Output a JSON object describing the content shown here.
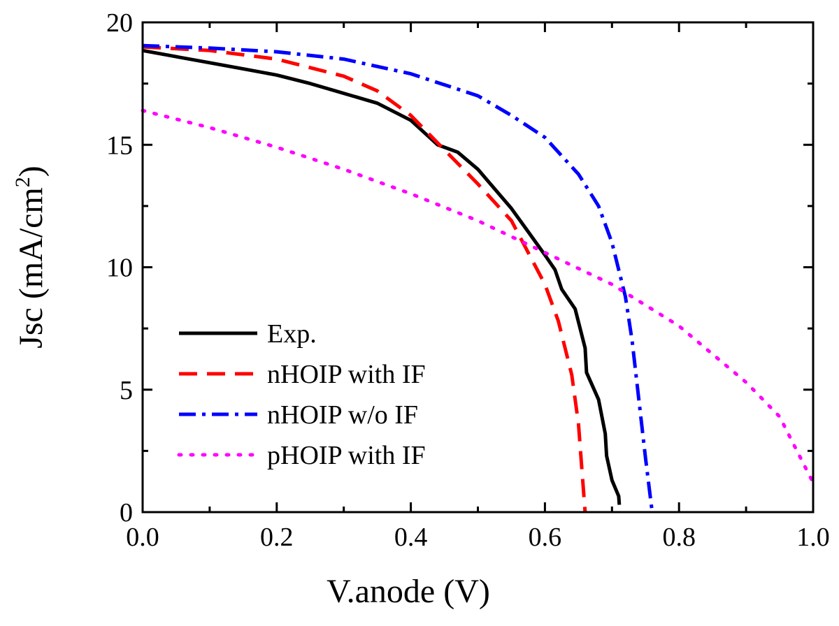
{
  "chart_data": {
    "type": "line",
    "xlabel": "V.anode (V)",
    "ylabel": {
      "prefix": "Jsc (mA/cm",
      "sup": "2",
      "suffix": ")"
    },
    "xlim": [
      0,
      1.0
    ],
    "ylim": [
      0,
      20
    ],
    "xticks": [
      "0.0",
      "0.2",
      "0.4",
      "0.6",
      "0.8",
      "1.0"
    ],
    "yticks": [
      "0",
      "5",
      "10",
      "15",
      "20"
    ],
    "xtick_values": [
      0,
      0.2,
      0.4,
      0.6,
      0.8,
      1.0
    ],
    "ytick_values": [
      0,
      5,
      10,
      15,
      20
    ],
    "grid": false,
    "legend_position": "bottom-left",
    "series": [
      {
        "name": "Exp.",
        "color": "#000000",
        "dash": "solid",
        "x": [
          0,
          0.05,
          0.1,
          0.15,
          0.2,
          0.25,
          0.3,
          0.35,
          0.4,
          0.44,
          0.47,
          0.5,
          0.55,
          0.6,
          0.615,
          0.625,
          0.645,
          0.66,
          0.662,
          0.68,
          0.69,
          0.692,
          0.7,
          0.71,
          0.711
        ],
        "y": [
          18.85,
          18.6,
          18.35,
          18.1,
          17.85,
          17.5,
          17.1,
          16.7,
          16.0,
          15.0,
          14.7,
          14.0,
          12.4,
          10.5,
          9.9,
          9.1,
          8.3,
          6.7,
          5.7,
          4.6,
          3.2,
          2.3,
          1.3,
          0.65,
          0.3
        ]
      },
      {
        "name": "nHOIP with IF",
        "color": "#ff0000",
        "dash": "dashed",
        "x": [
          0,
          0.1,
          0.2,
          0.3,
          0.35,
          0.4,
          0.45,
          0.5,
          0.55,
          0.6,
          0.62,
          0.64,
          0.65,
          0.655,
          0.66
        ],
        "y": [
          19.0,
          18.85,
          18.5,
          17.8,
          17.2,
          16.2,
          14.8,
          13.4,
          11.9,
          9.3,
          7.8,
          5.6,
          3.6,
          1.8,
          0
        ]
      },
      {
        "name": "nHOIP w/o IF",
        "color": "#0000ff",
        "dash": "dashdot",
        "x": [
          0,
          0.1,
          0.2,
          0.3,
          0.4,
          0.5,
          0.55,
          0.6,
          0.65,
          0.68,
          0.7,
          0.72,
          0.73,
          0.74,
          0.75,
          0.76
        ],
        "y": [
          19.05,
          18.95,
          18.8,
          18.5,
          17.9,
          17.0,
          16.2,
          15.3,
          13.8,
          12.5,
          11.0,
          8.8,
          7.0,
          4.6,
          2.2,
          0
        ]
      },
      {
        "name": "pHOIP with IF",
        "color": "#ff00ff",
        "dash": "dotted",
        "x": [
          0,
          0.1,
          0.2,
          0.3,
          0.4,
          0.5,
          0.6,
          0.7,
          0.8,
          0.9,
          0.95,
          1.0
        ],
        "y": [
          16.4,
          15.7,
          14.9,
          14.0,
          13.0,
          11.9,
          10.6,
          9.3,
          7.6,
          5.3,
          3.9,
          1.2
        ]
      }
    ]
  }
}
